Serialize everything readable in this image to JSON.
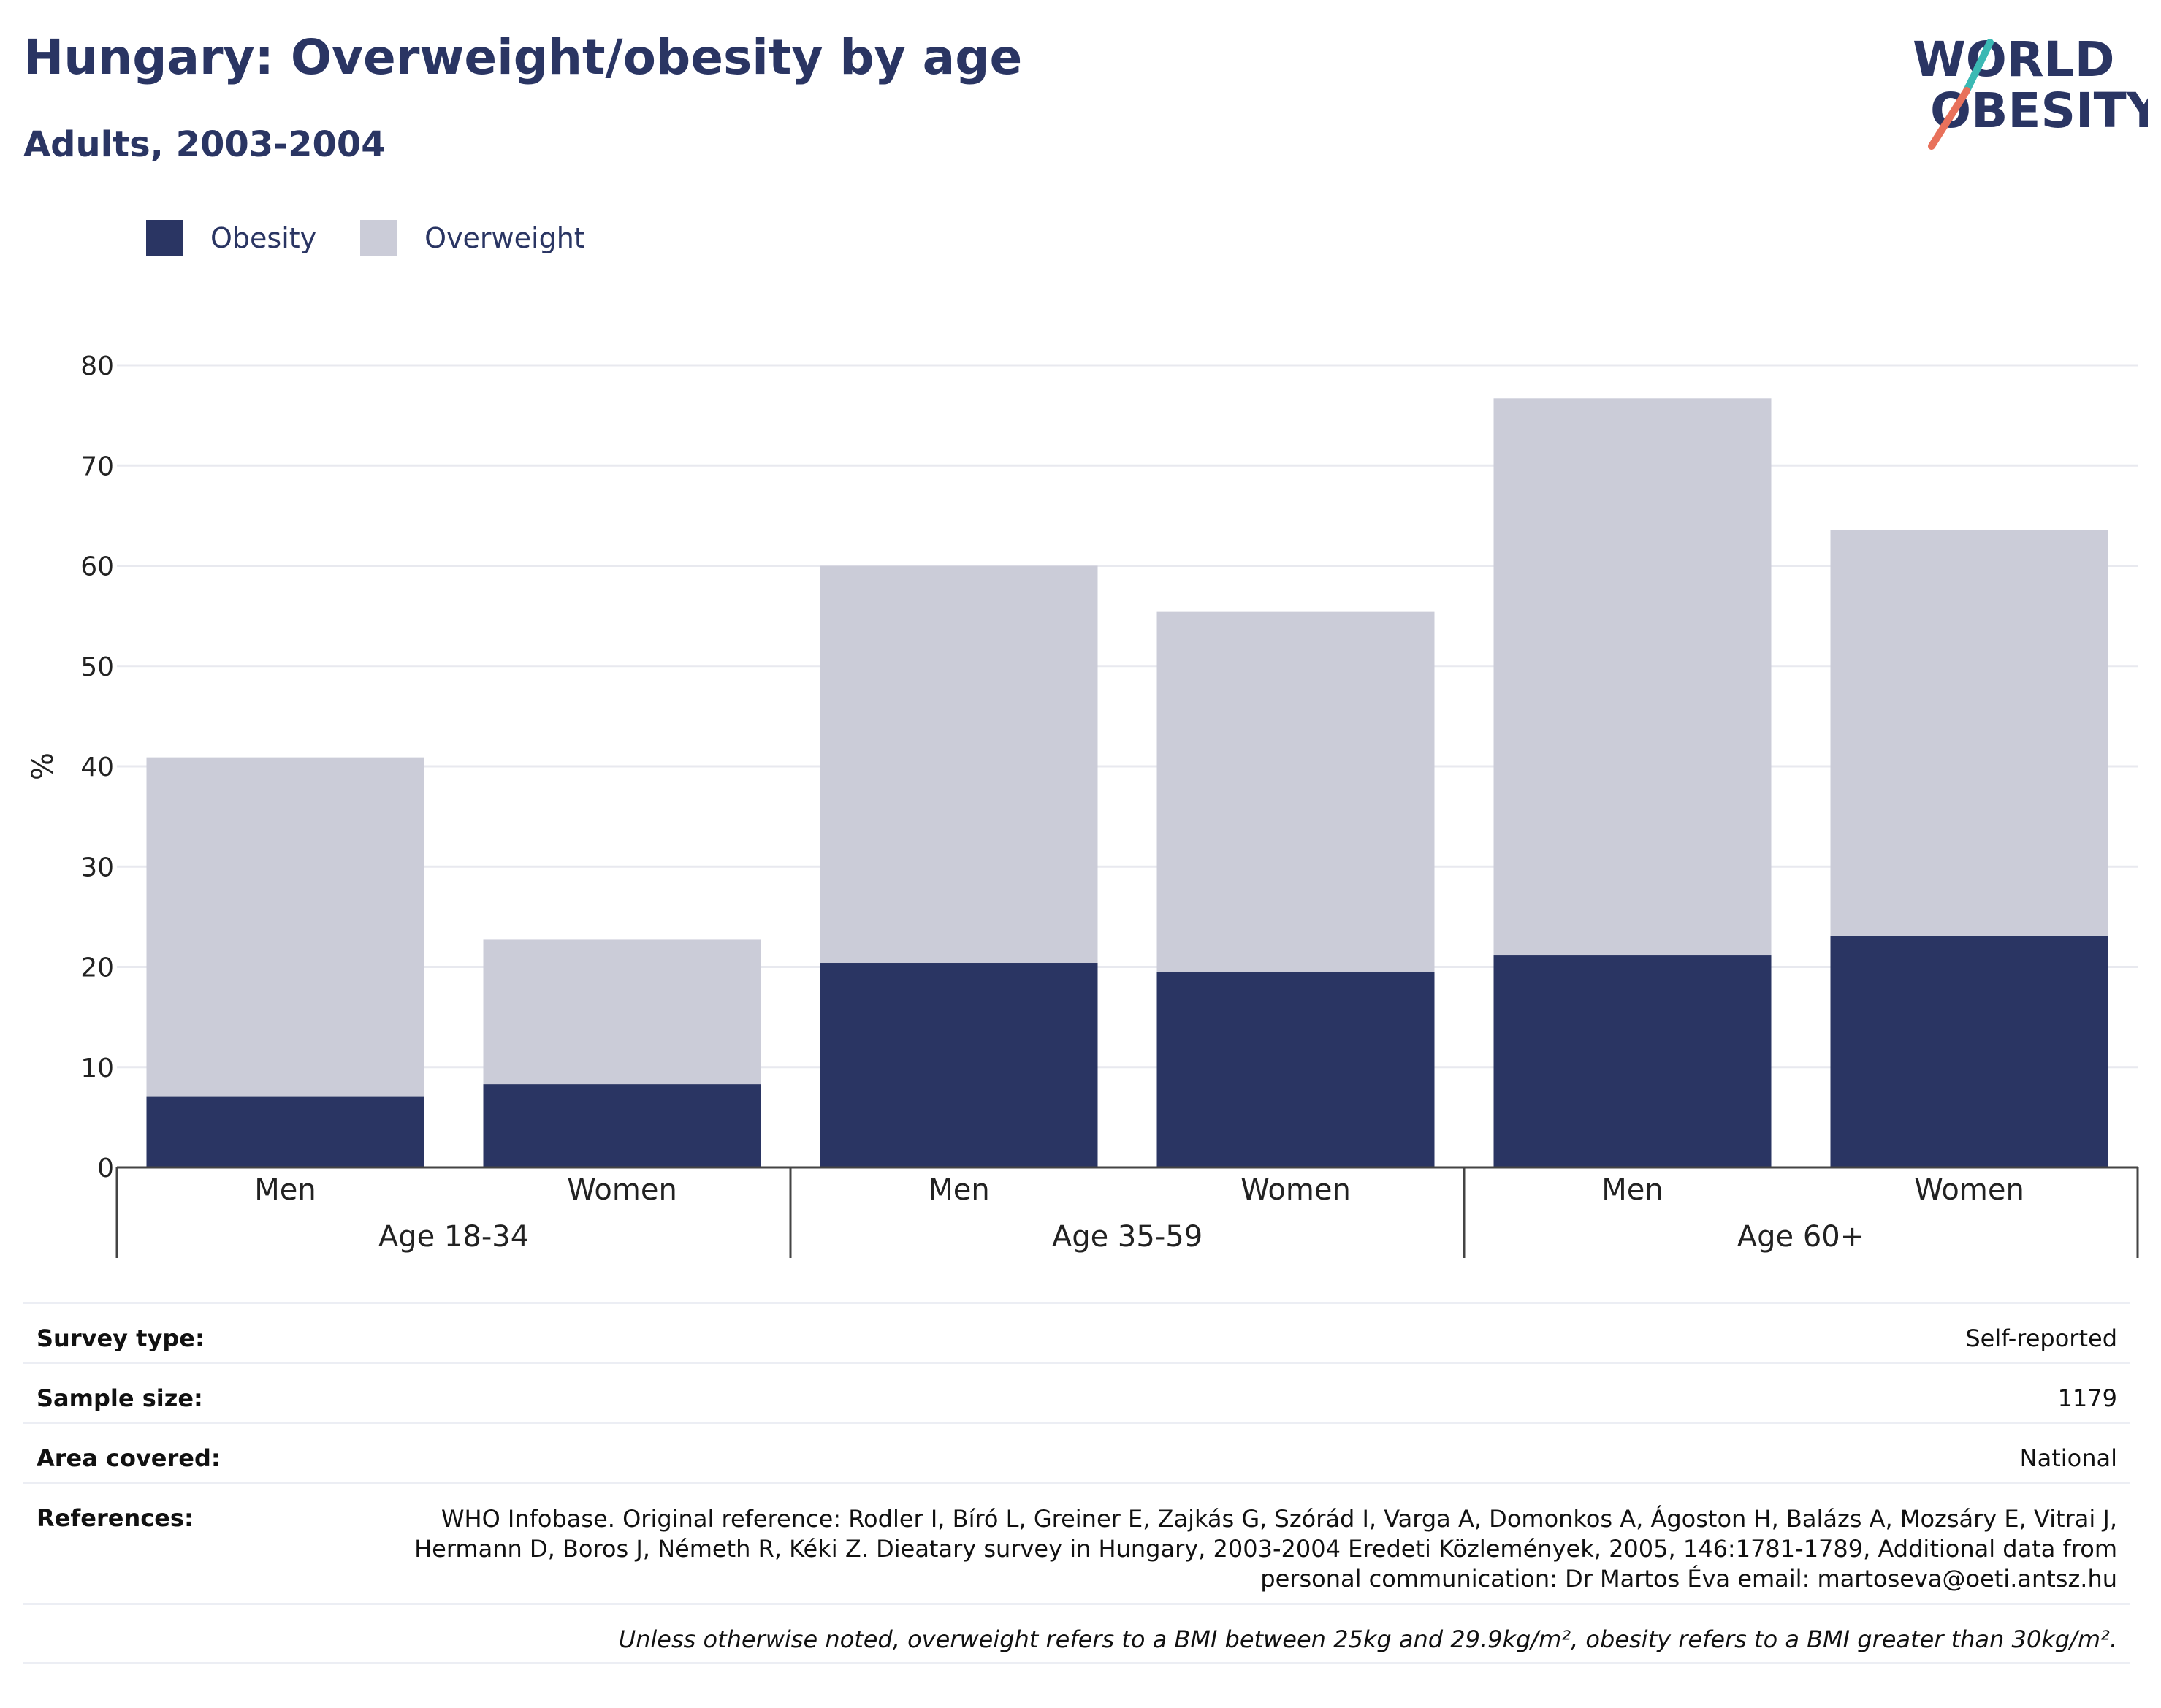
{
  "title": "Hungary: Overweight/obesity by age",
  "subtitle": "Adults, 2003-2004",
  "logo": {
    "line1": "WORLD",
    "line2": "OBESITY"
  },
  "colors": {
    "obesity": "#2a3563",
    "overweight": "#cbccd8",
    "text": "#2a3563",
    "grid": "#e8e9ef",
    "logo_teal": "#3bb9b4",
    "logo_coral": "#e8715b"
  },
  "chart_data": {
    "type": "bar",
    "stacked": true,
    "ylabel": "%",
    "ylim": [
      0,
      80
    ],
    "yticks": [
      0,
      10,
      20,
      30,
      40,
      50,
      60,
      70,
      80
    ],
    "grid": true,
    "legend_position": "top-left",
    "groups": [
      "Age 18-34",
      "Age 35-59",
      "Age 60+"
    ],
    "categories": [
      "Men",
      "Women",
      "Men",
      "Women",
      "Men",
      "Women"
    ],
    "series": [
      {
        "name": "Obesity",
        "values": [
          7.1,
          8.3,
          20.4,
          19.5,
          21.2,
          23.1
        ]
      },
      {
        "name": "Overweight",
        "values": [
          33.8,
          14.4,
          39.6,
          35.9,
          55.5,
          40.5
        ]
      }
    ]
  },
  "meta": {
    "survey_type": {
      "label": "Survey type:",
      "value": "Self-reported"
    },
    "sample_size": {
      "label": "Sample size:",
      "value": "1179"
    },
    "area_covered": {
      "label": "Area covered:",
      "value": "National"
    },
    "references": {
      "label": "References:",
      "value": "WHO Infobase. Original reference: Rodler I, Bíró L, Greiner E, Zajkás G, Szórád I, Varga A, Domonkos A, Ágoston H, Balázs A, Mozsáry E, Vitrai J, Hermann D, Boros J, Németh R, Kéki Z. Dieatary survey in Hungary, 2003-2004 Eredeti Közlemények, 2005, 146:1781-1789, Additional data from personal communication: Dr Martos Éva email: martoseva@oeti.antsz.hu"
    },
    "note": "Unless otherwise noted, overweight refers to a BMI between 25kg and 29.9kg/m², obesity refers to a BMI greater than 30kg/m²."
  }
}
